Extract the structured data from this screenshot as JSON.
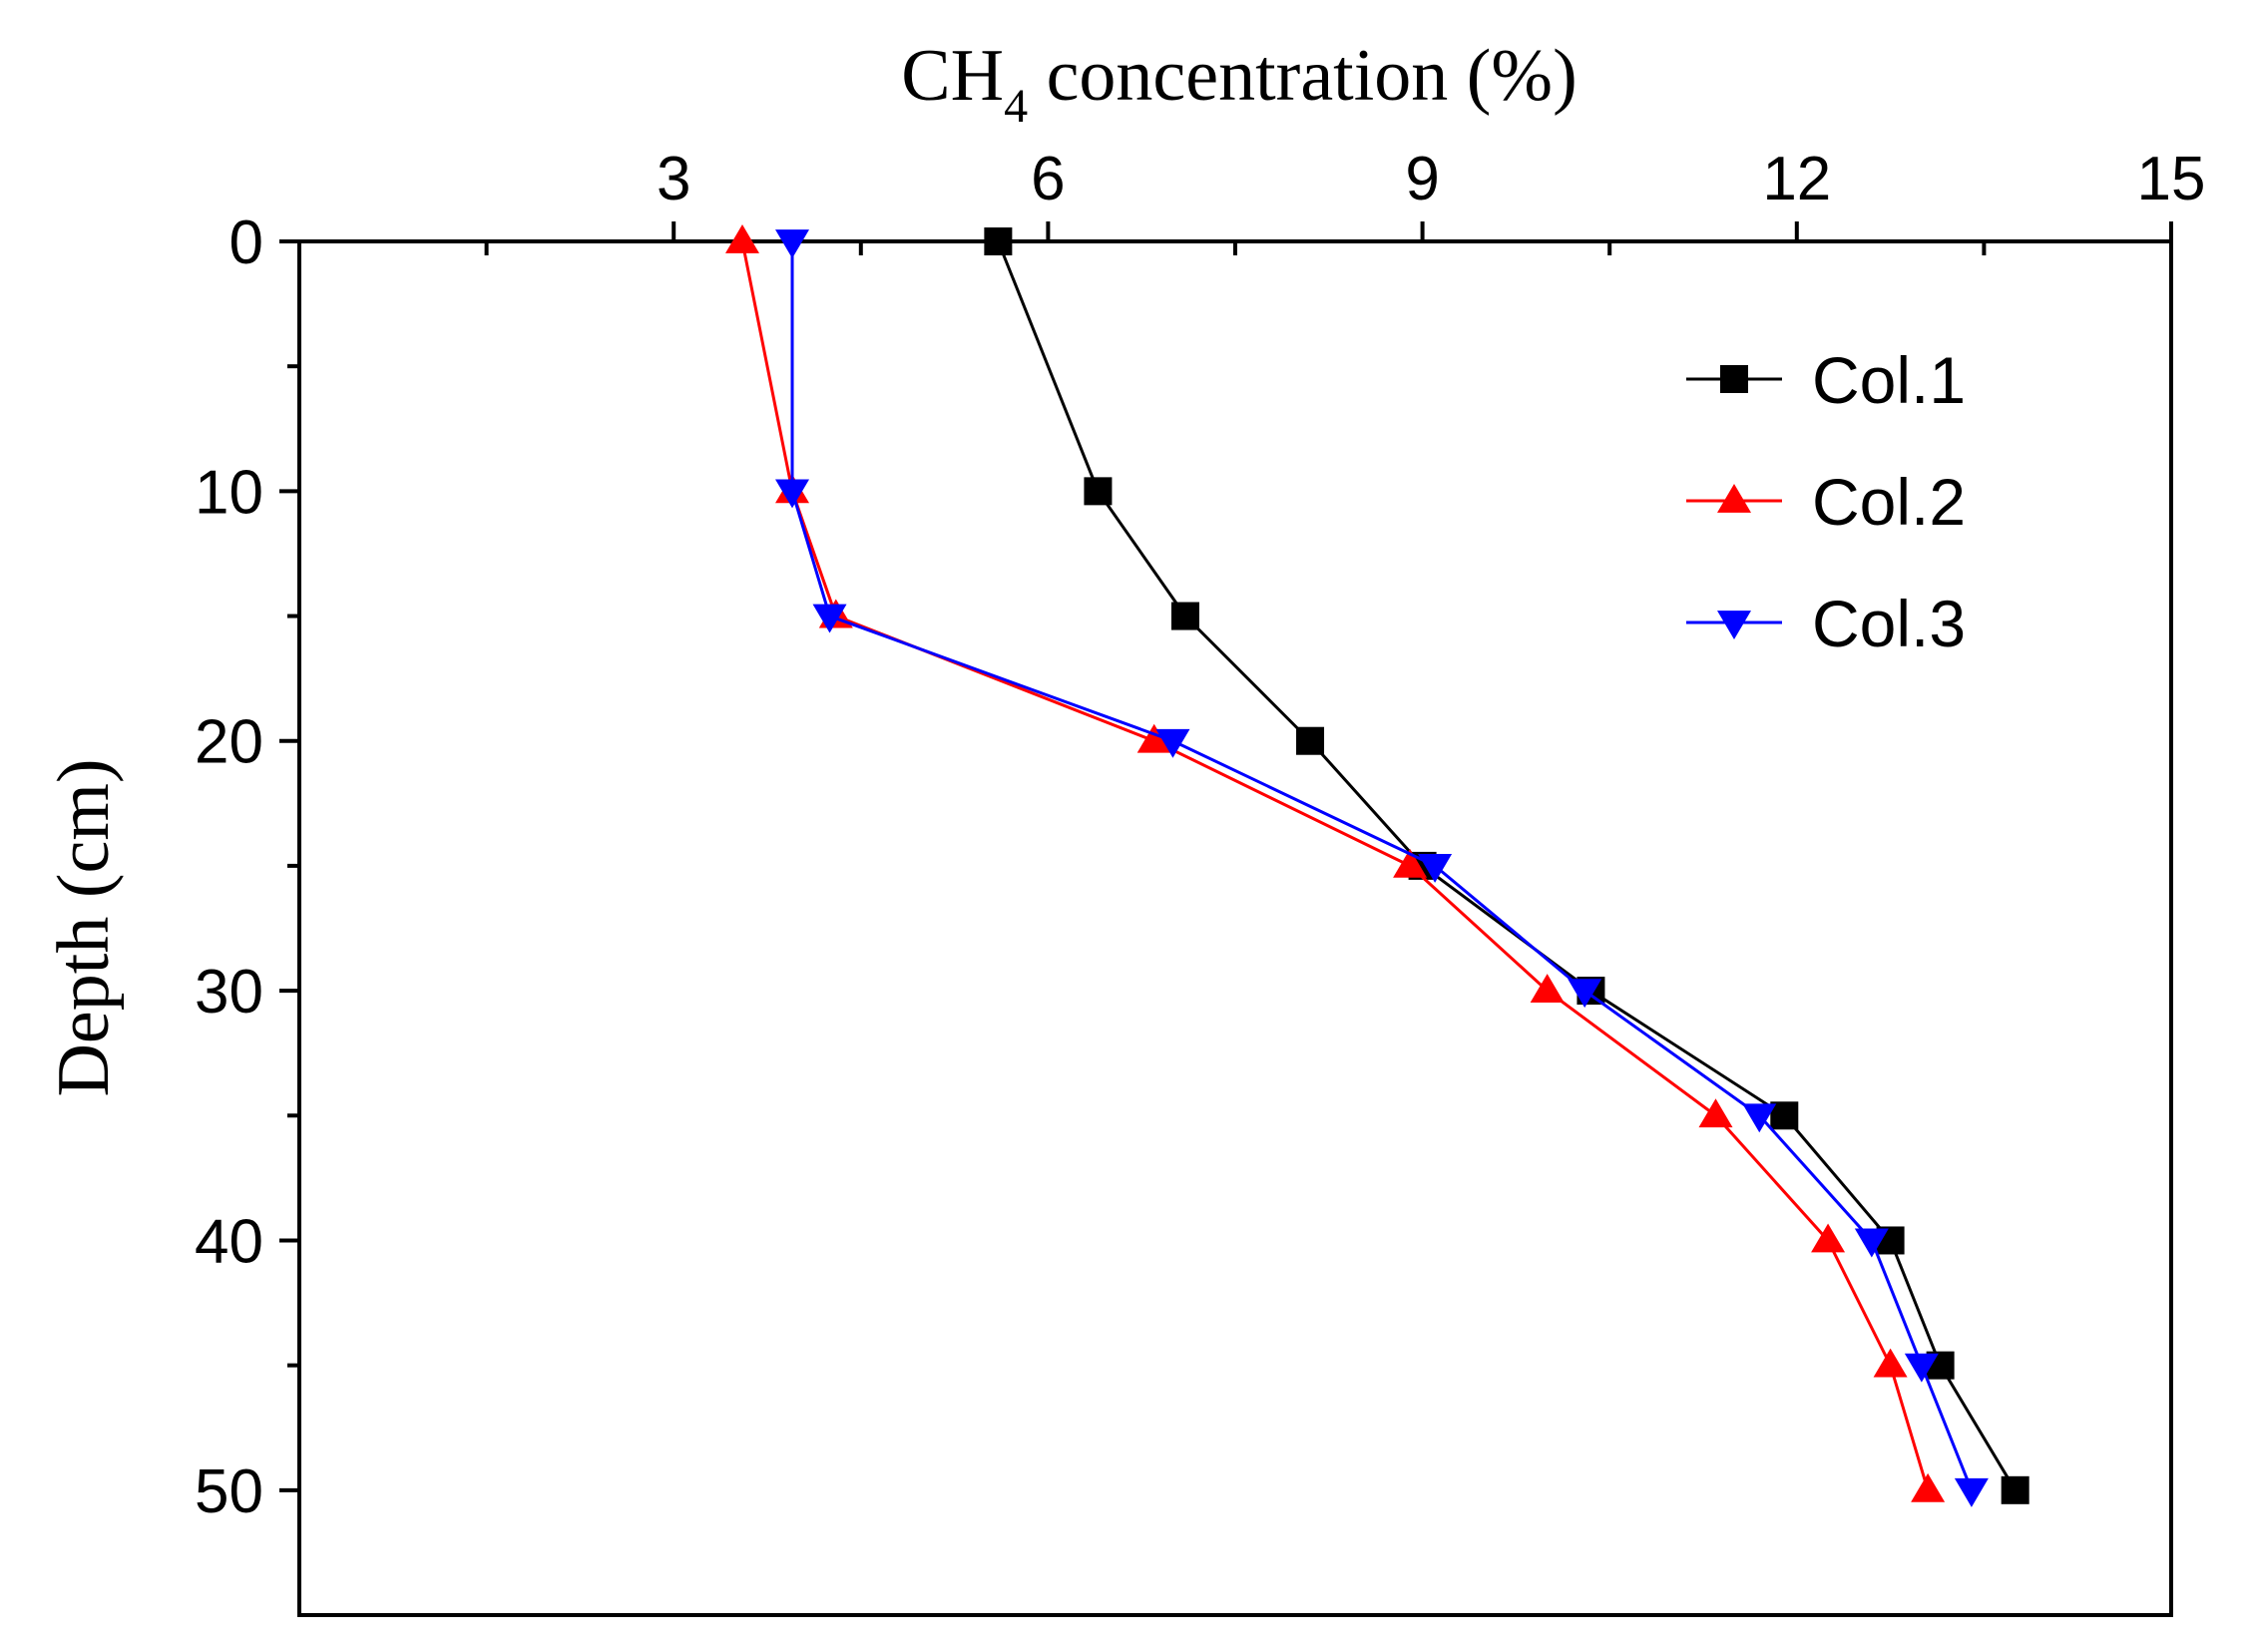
{
  "chart_data": {
    "type": "line",
    "title": "",
    "xlabel_main": "CH",
    "xlabel_sub": "4",
    "xlabel_rest": " concentration (%)",
    "ylabel": "Depth (cm)",
    "x_axis_position": "top",
    "y_axis_inverted": true,
    "xlim": [
      0,
      15
    ],
    "ylim": [
      0,
      55
    ],
    "x_ticks": [
      3,
      6,
      9,
      12,
      15
    ],
    "y_ticks": [
      0,
      10,
      20,
      30,
      40,
      50
    ],
    "grid": false,
    "legend_position": "top-right",
    "depths": [
      0,
      10,
      15,
      20,
      25,
      30,
      35,
      40,
      45,
      50
    ],
    "series": [
      {
        "name": "Col.1",
        "color": "#000000",
        "marker": "square",
        "values": [
          5.6,
          6.4,
          7.1,
          8.1,
          9.0,
          10.35,
          11.9,
          12.75,
          13.15,
          13.75
        ]
      },
      {
        "name": "Col.2",
        "color": "#ff0000",
        "marker": "triangle-up",
        "values": [
          3.55,
          3.95,
          4.3,
          6.85,
          8.9,
          10.0,
          11.35,
          12.25,
          12.75,
          13.05
        ]
      },
      {
        "name": "Col.3",
        "color": "#0000ff",
        "marker": "triangle-down",
        "values": [
          3.95,
          3.95,
          4.25,
          7.0,
          9.1,
          10.3,
          11.7,
          12.6,
          13.0,
          13.4
        ]
      }
    ]
  }
}
